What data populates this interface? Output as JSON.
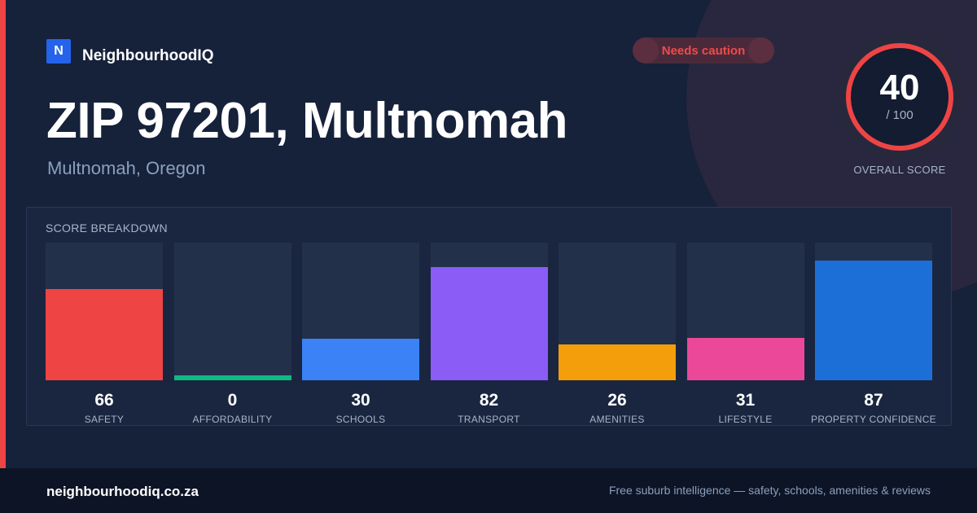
{
  "brand": {
    "mark": "N",
    "name": "NeighbourhoodIQ"
  },
  "badge": {
    "label": "Needs caution",
    "color": "#ef4444"
  },
  "header": {
    "title": "ZIP 97201, Multnomah",
    "subtitle": "Multnomah, Oregon"
  },
  "overall": {
    "value": "40",
    "max_text": "/ 100",
    "label": "OVERALL SCORE",
    "score": 40,
    "max": 100,
    "color": "#ef4444"
  },
  "chart_data": {
    "type": "bar",
    "title": "SCORE BREAKDOWN",
    "categories": [
      "SAFETY",
      "AFFORDABILITY",
      "SCHOOLS",
      "TRANSPORT",
      "AMENITIES",
      "LIFESTYLE",
      "PROPERTY CONFIDENCE"
    ],
    "values": [
      66,
      0,
      30,
      82,
      26,
      31,
      87
    ],
    "colors": [
      "#ef4444",
      "#10b981",
      "#3b82f6",
      "#8b5cf6",
      "#f59e0b",
      "#ec4899",
      "#1d6fd8"
    ],
    "ylim": [
      0,
      100
    ],
    "grid": false
  },
  "footer": {
    "url": "neighbourhoodiq.co.za",
    "tagline": "Free suburb intelligence — safety, schools, amenities & reviews"
  }
}
